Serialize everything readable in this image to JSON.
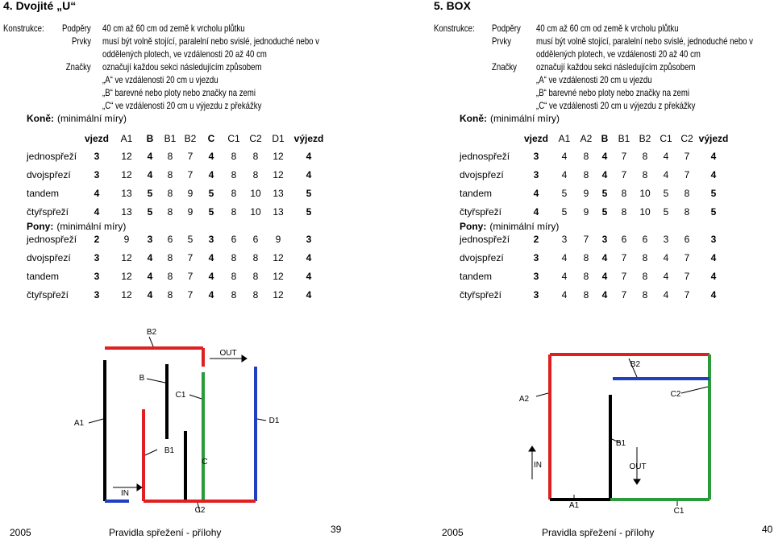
{
  "pages": [
    {
      "title": "4. Dvojité „U“",
      "construction": {
        "label": "Konstrukce:",
        "items": [
          {
            "term": "Podpěry",
            "lines": [
              "40 cm až 60 cm od země k vrcholu plůtku"
            ]
          },
          {
            "term": "Prvky",
            "lines": [
              "musí být volně stojící, paralelní nebo svislé, jednoduché nebo v",
              "oddělených plotech, ve vzdálenosti 20 až 40 cm"
            ]
          },
          {
            "term": "Značky",
            "lines": [
              "označují každou sekci následujícím způsobem",
              "„A“ ve vzdálenosti 20 cm u vjezdu",
              "„B“ barevné nebo ploty nebo značky na zemi",
              "„C“ ve vzdálenosti 20 cm u výjezdu z překážky"
            ]
          }
        ]
      },
      "horses": {
        "title": "Koně:",
        "subtitle": "(minimální míry)",
        "header": [
          "vjezd",
          "A1",
          "B",
          "B1",
          "B2",
          "C",
          "C1",
          "C2",
          "D1",
          "výjezd"
        ],
        "rows": [
          {
            "label": "jednospřeží",
            "values": [
              3,
              12,
              4,
              8,
              7,
              4,
              8,
              8,
              12,
              4
            ]
          },
          {
            "label": "dvojspřezí",
            "values": [
              3,
              12,
              4,
              8,
              7,
              4,
              8,
              8,
              12,
              4
            ]
          },
          {
            "label": "tandem",
            "values": [
              4,
              13,
              5,
              8,
              9,
              5,
              8,
              10,
              13,
              5
            ]
          },
          {
            "label": "čtyřspřeží",
            "values": [
              4,
              13,
              5,
              8,
              9,
              5,
              8,
              10,
              13,
              5
            ]
          }
        ]
      },
      "ponies": {
        "title": "Pony:",
        "subtitle": "(minimální míry)",
        "rows": [
          {
            "label": "jednospřeží",
            "values": [
              2,
              9,
              3,
              6,
              5,
              3,
              6,
              6,
              9,
              3
            ]
          },
          {
            "label": "dvojspřezí",
            "values": [
              3,
              12,
              4,
              8,
              7,
              4,
              8,
              8,
              12,
              4
            ]
          },
          {
            "label": "tandem",
            "values": [
              3,
              12,
              4,
              8,
              7,
              4,
              8,
              8,
              12,
              4
            ]
          },
          {
            "label": "čtyřspřeží",
            "values": [
              3,
              12,
              4,
              8,
              7,
              4,
              8,
              8,
              12,
              4
            ]
          }
        ]
      },
      "diagram": {
        "labels": [
          "B2",
          "OUT",
          "B",
          "C1",
          "A1",
          "D1",
          "B1",
          "C",
          "IN",
          "C2"
        ]
      },
      "footer": {
        "year": "2005",
        "text": "Pravidla spřežení - přílohy",
        "page": "39"
      }
    },
    {
      "title": "5. BOX",
      "construction": {
        "label": "Konstrukce:",
        "items": [
          {
            "term": "Podpěry",
            "lines": [
              "40 cm až 60 cm od země k vrcholu plůtku"
            ]
          },
          {
            "term": "Prvky",
            "lines": [
              "musí být volně stojící, paralelní nebo svislé, jednoduché nebo v",
              "oddělených plotech, ve vzdálenosti 20 až 40 cm"
            ]
          },
          {
            "term": "Značky",
            "lines": [
              "označují každou sekci následujícím způsobem",
              "„A“ ve vzdálenosti 20 cm u vjezdu",
              "„B“ barevné nebo ploty nebo značky na zemi",
              "„C“ ve vzdálenosti 20 cm u výjezdu z překážky"
            ]
          }
        ]
      },
      "horses": {
        "title": "Koně:",
        "subtitle": "(minimální míry)",
        "header": [
          "vjezd",
          "A1",
          "A2",
          "B",
          "B1",
          "B2",
          "C1",
          "C2",
          "výjezd"
        ],
        "rows": [
          {
            "label": "jednospřeží",
            "values": [
              3,
              4,
              8,
              4,
              7,
              8,
              4,
              7,
              4
            ]
          },
          {
            "label": "dvojspřezí",
            "values": [
              3,
              4,
              8,
              4,
              7,
              8,
              4,
              7,
              4
            ]
          },
          {
            "label": "tandem",
            "values": [
              4,
              5,
              9,
              5,
              8,
              10,
              5,
              8,
              5
            ]
          },
          {
            "label": "čtyřspřeží",
            "values": [
              4,
              5,
              9,
              5,
              8,
              10,
              5,
              8,
              5
            ]
          }
        ]
      },
      "ponies": {
        "title": "Pony:",
        "subtitle": "(minimální míry)",
        "rows": [
          {
            "label": "jednospřeží",
            "values": [
              2,
              3,
              7,
              3,
              6,
              6,
              3,
              6,
              3
            ]
          },
          {
            "label": "dvojspřezí",
            "values": [
              3,
              4,
              8,
              4,
              7,
              8,
              4,
              7,
              4
            ]
          },
          {
            "label": "tandem",
            "values": [
              3,
              4,
              8,
              4,
              7,
              8,
              4,
              7,
              4
            ]
          },
          {
            "label": "čtyřspřeží",
            "values": [
              3,
              4,
              8,
              4,
              7,
              8,
              4,
              7,
              4
            ]
          }
        ]
      },
      "diagram": {
        "labels": [
          "A2",
          "C2",
          "B2",
          "B1",
          "IN",
          "OUT",
          "A1",
          "C1"
        ]
      },
      "footer": {
        "year": "2005",
        "text": "Pravidla spřežení - přílohy",
        "page": "40"
      }
    }
  ]
}
